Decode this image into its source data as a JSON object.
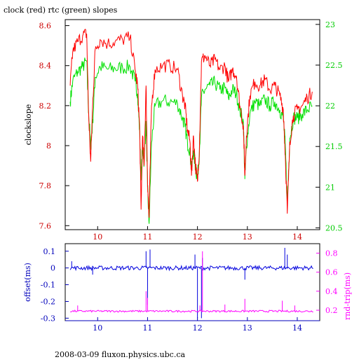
{
  "title": "clock (red) rtc (green) slopes",
  "footer": "2008-03-09 fluxon.physics.ubc.ca",
  "colors": {
    "clock": "#ff0000",
    "rtc": "#00e000",
    "offset": "#0000dd",
    "rndtrip": "#ff00ff",
    "frame_bottom": "#0000bb"
  },
  "chart_data": [
    {
      "type": "line",
      "name": "slopes",
      "ylabel": "clockslope",
      "y2label": "",
      "xlim": [
        9.35,
        14.45
      ],
      "ylim": [
        7.58,
        8.63
      ],
      "y2lim": [
        20.478,
        23.059
      ],
      "xticks": [
        "10",
        "11",
        "12",
        "13",
        "14"
      ],
      "yticks": [
        "7.6",
        "7.8",
        "8",
        "8.2",
        "8.4",
        "8.6"
      ],
      "y2ticks": [
        "20.5",
        "21",
        "21.5",
        "22",
        "22.5",
        "23"
      ],
      "series": [
        {
          "name": "clock (red)",
          "axis": "left",
          "x": [
            9.45,
            9.5,
            9.6,
            9.7,
            9.78,
            9.82,
            9.86,
            9.9,
            9.95,
            10.05,
            10.2,
            10.35,
            10.5,
            10.65,
            10.75,
            10.8,
            10.84,
            10.87,
            10.9,
            10.93,
            10.97,
            11.0,
            11.03,
            11.08,
            11.15,
            11.3,
            11.45,
            11.6,
            11.7,
            11.75,
            11.8,
            11.85,
            11.88,
            11.92,
            11.96,
            12.0,
            12.04,
            12.08,
            12.15,
            12.25,
            12.35,
            12.45,
            12.55,
            12.62,
            12.7,
            12.78,
            12.85,
            12.92,
            12.95,
            12.98,
            13.05,
            13.15,
            13.25,
            13.35,
            13.45,
            13.55,
            13.65,
            13.72,
            13.76,
            13.8,
            13.85,
            13.92,
            14.0,
            14.1,
            14.2,
            14.3
          ],
          "y": [
            8.3,
            8.47,
            8.52,
            8.55,
            8.56,
            8.15,
            7.92,
            8.2,
            8.48,
            8.53,
            8.51,
            8.52,
            8.53,
            8.54,
            8.38,
            8.3,
            8.1,
            7.68,
            8.05,
            7.9,
            8.3,
            7.82,
            7.64,
            8.2,
            8.38,
            8.4,
            8.4,
            8.38,
            8.25,
            8.2,
            8.08,
            8.02,
            7.85,
            8.05,
            7.9,
            7.82,
            8.0,
            8.42,
            8.45,
            8.4,
            8.43,
            8.38,
            8.4,
            8.32,
            8.38,
            8.35,
            8.2,
            8.1,
            7.85,
            8.05,
            8.25,
            8.32,
            8.3,
            8.33,
            8.28,
            8.3,
            8.25,
            8.18,
            7.95,
            7.66,
            8.02,
            8.15,
            8.18,
            8.2,
            8.24,
            8.27
          ]
        },
        {
          "name": "rtc (green)",
          "axis": "right",
          "x": [
            9.45,
            9.5,
            9.6,
            9.7,
            9.78,
            9.82,
            9.86,
            9.9,
            9.95,
            10.05,
            10.2,
            10.35,
            10.5,
            10.65,
            10.75,
            10.8,
            10.84,
            10.87,
            10.9,
            10.93,
            10.97,
            11.0,
            11.03,
            11.08,
            11.15,
            11.3,
            11.45,
            11.6,
            11.7,
            11.75,
            11.8,
            11.85,
            11.88,
            11.92,
            11.96,
            12.0,
            12.04,
            12.08,
            12.15,
            12.25,
            12.35,
            12.45,
            12.55,
            12.62,
            12.7,
            12.78,
            12.85,
            12.92,
            12.95,
            12.98,
            13.05,
            13.15,
            13.25,
            13.35,
            13.45,
            13.55,
            13.65,
            13.72,
            13.76,
            13.8,
            13.85,
            13.92,
            14.0,
            14.1,
            14.2,
            14.3
          ],
          "y": [
            22.05,
            22.3,
            22.42,
            22.48,
            22.55,
            21.9,
            21.5,
            21.8,
            22.35,
            22.48,
            22.45,
            22.46,
            22.47,
            22.48,
            22.3,
            22.15,
            21.7,
            21.1,
            21.55,
            21.3,
            21.8,
            21.0,
            20.55,
            21.55,
            22.0,
            22.06,
            22.05,
            22.03,
            21.85,
            21.75,
            21.55,
            21.45,
            21.2,
            21.45,
            21.25,
            21.1,
            21.45,
            22.1,
            22.2,
            22.25,
            22.28,
            22.2,
            22.22,
            22.1,
            22.2,
            22.15,
            21.95,
            21.8,
            21.1,
            21.5,
            21.9,
            22.05,
            22.0,
            22.08,
            22.0,
            22.05,
            21.95,
            21.85,
            21.5,
            20.8,
            21.6,
            21.85,
            21.85,
            21.9,
            21.95,
            22.0
          ]
        }
      ]
    },
    {
      "type": "line",
      "name": "network",
      "ylabel": "offset(ms)",
      "y2label": "rnd-trip(ms)",
      "xlim": [
        9.35,
        14.45
      ],
      "ylim": [
        -0.315,
        0.145
      ],
      "y2lim": [
        0.09,
        0.9
      ],
      "xticks": [
        "10",
        "11",
        "12",
        "13",
        "14"
      ],
      "yticks": [
        "-0.3",
        "-0.2",
        "-0.1",
        "0",
        "0.1"
      ],
      "y2ticks": [
        "0.2",
        "0.4",
        "0.6",
        "0.8"
      ],
      "series": [
        {
          "name": "offset",
          "axis": "left",
          "baseline": 0.0,
          "spikes": [
            [
              9.48,
              0.04
            ],
            [
              9.9,
              -0.04
            ],
            [
              10.97,
              0.1
            ],
            [
              11.0,
              -0.22
            ],
            [
              11.05,
              0.11
            ],
            [
              11.95,
              0.08
            ],
            [
              12.0,
              -0.3
            ],
            [
              12.08,
              -0.3
            ],
            [
              12.1,
              0.06
            ],
            [
              12.95,
              -0.07
            ],
            [
              13.75,
              0.12
            ],
            [
              13.8,
              0.08
            ]
          ]
        },
        {
          "name": "rnd-trip",
          "axis": "right",
          "baseline": 0.19,
          "spikes": [
            [
              9.6,
              0.25
            ],
            [
              10.97,
              0.4
            ],
            [
              11.0,
              0.33
            ],
            [
              12.05,
              0.25
            ],
            [
              12.1,
              0.82
            ],
            [
              12.55,
              0.26
            ],
            [
              12.95,
              0.32
            ],
            [
              13.7,
              0.3
            ],
            [
              13.95,
              0.25
            ]
          ]
        }
      ]
    }
  ]
}
